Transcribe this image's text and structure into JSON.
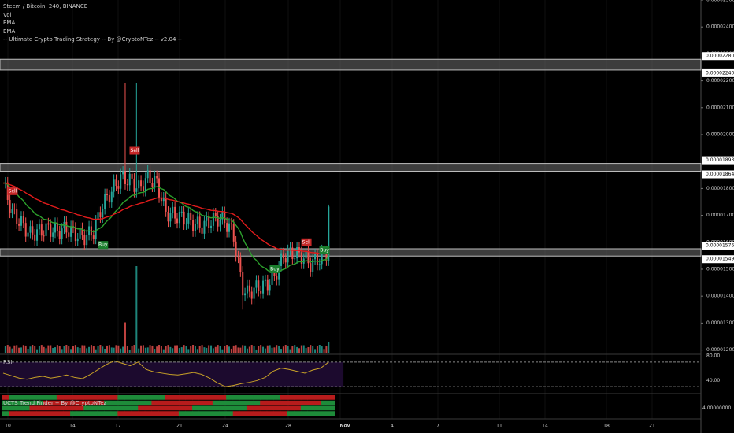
{
  "legend": {
    "symbol": "Steem / Bitcoin, 240, BINANCE",
    "vol": "Vol",
    "ema1": "EMA",
    "ema2": "EMA",
    "strategy": "-- Ultimate Crypto Trading Strategy -- By @CryptoNTez -- v2.04 --"
  },
  "panes": {
    "rsi_label": "RSI",
    "trend_label": "UCTS Trend Finder -- By @CryptoNTez"
  },
  "colors": {
    "background": "#000000",
    "bull": "#26a69a",
    "bear": "#ef5350",
    "ema_fast": "#2ca02c",
    "ema_slow": "#e21b1b",
    "rsi_line": "#c9a227",
    "rsi_band": "#1c0a2e",
    "level_box": "#707070",
    "sell_tag": "#c62828",
    "buy_tag": "#1b7f2e"
  },
  "chart_data": [
    {
      "type": "candlestick",
      "title": "Steem / Bitcoin, 240, BINANCE",
      "x_ticks": [
        "10",
        "14",
        "17",
        "21",
        "24",
        "28",
        "Nov",
        "4",
        "7",
        "11",
        "14",
        "18",
        "21"
      ],
      "y_ticks": [
        "0.00002500",
        "0.00002400",
        "0.00002300",
        "0.00002200",
        "0.00002100",
        "0.00002000",
        "0.00001800",
        "0.00001700",
        "0.00001600",
        "0.00001500",
        "0.00001400",
        "0.00001300",
        "0.00001200"
      ],
      "ylim": [
        1.19e-05,
        2.5e-05
      ],
      "highlighted_levels": [
        "0.00002280",
        "0.00002240",
        "0.00001893",
        "0.00001864",
        "0.00001576",
        "0.00001549"
      ],
      "level_boxes": [
        {
          "low": 2.24e-05,
          "high": 2.28e-05
        },
        {
          "low": 1.864e-05,
          "high": 1.893e-05
        },
        {
          "low": 1.549e-05,
          "high": 1.576e-05
        }
      ],
      "close_path": [
        [
          0,
          1.82e-05
        ],
        [
          4,
          1.71e-05
        ],
        [
          8,
          1.67e-05
        ],
        [
          12,
          1.63e-05
        ],
        [
          16,
          1.64e-05
        ],
        [
          20,
          1.65e-05
        ],
        [
          24,
          1.64e-05
        ],
        [
          28,
          1.65e-05
        ],
        [
          32,
          1.63e-05
        ],
        [
          36,
          1.62e-05
        ],
        [
          40,
          1.64e-05
        ],
        [
          44,
          1.74e-05
        ],
        [
          48,
          1.79e-05
        ],
        [
          52,
          1.84e-05
        ],
        [
          56,
          1.83e-05
        ],
        [
          60,
          1.8e-05
        ],
        [
          64,
          1.84e-05
        ],
        [
          68,
          1.82e-05
        ],
        [
          72,
          1.71e-05
        ],
        [
          76,
          1.7e-05
        ],
        [
          80,
          1.69e-05
        ],
        [
          84,
          1.67e-05
        ],
        [
          88,
          1.66e-05
        ],
        [
          92,
          1.68e-05
        ],
        [
          96,
          1.69e-05
        ],
        [
          100,
          1.66e-05
        ],
        [
          102,
          1.62e-05
        ],
        [
          104,
          1.52e-05
        ],
        [
          106,
          1.43e-05
        ],
        [
          108,
          1.41e-05
        ],
        [
          112,
          1.43e-05
        ],
        [
          116,
          1.44e-05
        ],
        [
          120,
          1.47e-05
        ],
        [
          122,
          1.51e-05
        ],
        [
          124,
          1.55e-05
        ],
        [
          128,
          1.56e-05
        ],
        [
          132,
          1.55e-05
        ],
        [
          136,
          1.52e-05
        ],
        [
          140,
          1.54e-05
        ],
        [
          143,
          1.56e-05
        ],
        [
          144,
          1.74e-05
        ]
      ],
      "spikes": [
        {
          "i": 54,
          "high": 2.19e-05
        },
        {
          "i": 59,
          "high": 2.19e-05
        },
        {
          "i": 106,
          "low": 1.35e-05
        },
        {
          "i": 144,
          "high": 1.74e-05
        }
      ],
      "volume_spikes": [
        {
          "i": 59,
          "value": 1.0
        },
        {
          "i": 54,
          "value": 0.35
        },
        {
          "i": 144,
          "value": 0.12
        }
      ],
      "signals": [
        {
          "label": "Sell",
          "i": 4,
          "price": 1.79e-05
        },
        {
          "label": "Buy",
          "i": 44,
          "price": 1.59e-05
        },
        {
          "label": "Sell",
          "i": 58,
          "price": 1.94e-05
        },
        {
          "label": "Buy",
          "i": 120,
          "price": 1.5e-05
        },
        {
          "label": "Sell",
          "i": 134,
          "price": 1.6e-05
        },
        {
          "label": "Buy",
          "i": 142,
          "price": 1.57e-05
        }
      ]
    },
    {
      "type": "line",
      "title": "RSI",
      "y_ticks": [
        "80.00",
        "40.00"
      ],
      "ylim": [
        20,
        80
      ],
      "band": [
        30,
        70
      ],
      "values": [
        52,
        48,
        44,
        42,
        45,
        47,
        44,
        46,
        49,
        45,
        43,
        50,
        58,
        66,
        72,
        68,
        64,
        70,
        58,
        54,
        52,
        50,
        49,
        51,
        53,
        50,
        44,
        36,
        30,
        32,
        35,
        37,
        40,
        45,
        55,
        60,
        58,
        55,
        52,
        57,
        60,
        70
      ]
    },
    {
      "type": "heatmap",
      "title": "UCTS Trend Finder -- By @CryptoNTez",
      "y_ticks": [
        "4.00000000"
      ],
      "rows": 4
    }
  ]
}
